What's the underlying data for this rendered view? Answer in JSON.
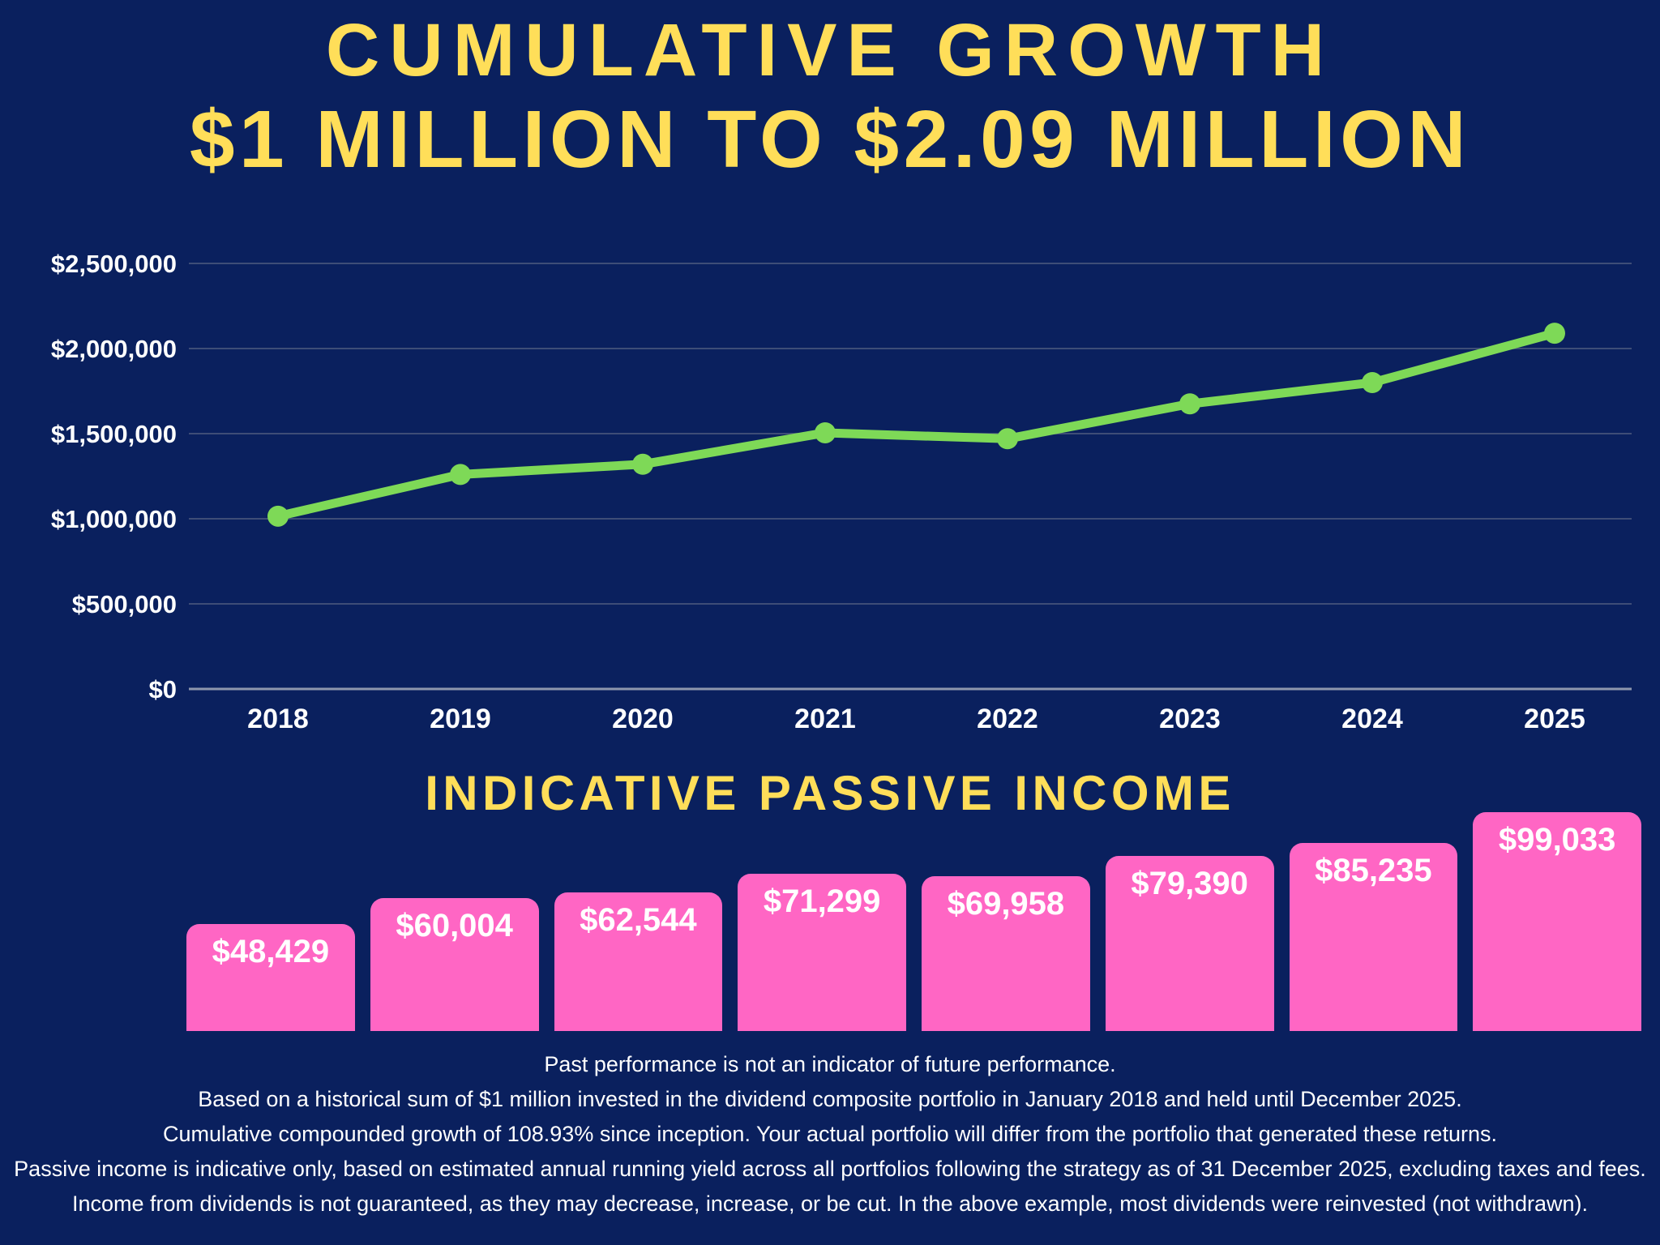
{
  "header": {
    "title_line1": "CUMULATIVE GROWTH",
    "title_line2": "$1 MILLION TO $2.09 MILLION"
  },
  "chart_data": [
    {
      "type": "line",
      "name": "cumulative-growth",
      "x": [
        "2018",
        "2019",
        "2020",
        "2021",
        "2022",
        "2023",
        "2024",
        "2025"
      ],
      "values": [
        1015000,
        1260000,
        1320000,
        1505000,
        1470000,
        1675000,
        1800000,
        2090000
      ],
      "ylim": [
        0,
        2500000
      ],
      "yticks": [
        {
          "label": "$2,500,000",
          "value": 2500000
        },
        {
          "label": "$2,000,000",
          "value": 2000000
        },
        {
          "label": "$1,500,000",
          "value": 1500000
        },
        {
          "label": "$1,000,000",
          "value": 1000000
        },
        {
          "label": "$500,000",
          "value": 500000
        },
        {
          "label": "$0",
          "value": 0
        }
      ],
      "grid": true,
      "legend": false,
      "line_color": "#7ed957",
      "marker": "circle"
    },
    {
      "type": "bar",
      "name": "indicative-passive-income",
      "title": "INDICATIVE PASSIVE INCOME",
      "categories": [
        "2018",
        "2019",
        "2020",
        "2021",
        "2022",
        "2023",
        "2024",
        "2025"
      ],
      "values": [
        48429,
        60004,
        62544,
        71299,
        69958,
        79390,
        85235,
        99033
      ],
      "labels": [
        "$48,429",
        "$60,004",
        "$62,544",
        "$71,299",
        "$69,958",
        "$79,390",
        "$85,235",
        "$99,033"
      ],
      "bar_color": "#ff66c4",
      "label_position": "inside-top"
    }
  ],
  "footer": {
    "lines": [
      "Past performance is not an indicator of future performance.",
      "Based on a historical sum of $1 million invested in the dividend composite portfolio in January 2018 and held until December 2025.",
      "Cumulative compounded growth of 108.93% since inception. Your actual portfolio will differ from the portfolio that generated these returns.",
      "Passive income is indicative only, based on estimated annual running yield across all portfolios following the strategy as of 31 December 2025, excluding taxes and fees.",
      "Income from dividends is not guaranteed, as they may decrease, increase, or be cut. In the above example, most dividends were reinvested (not withdrawn)."
    ]
  },
  "colors": {
    "background": "#0a205e",
    "accent_yellow": "#ffde59",
    "line_green": "#7ed957",
    "bar_pink": "#ff66c4",
    "gridline": "#3e4d77",
    "axis_line": "#8e97ad",
    "text_white": "#ffffff"
  }
}
